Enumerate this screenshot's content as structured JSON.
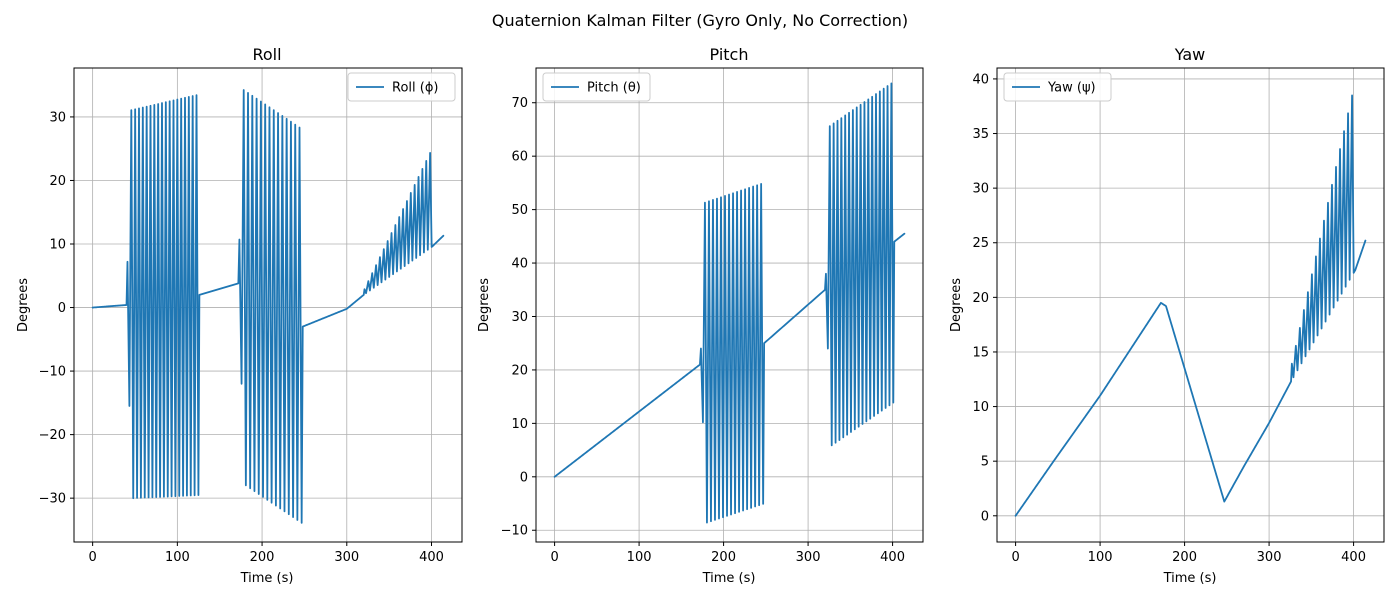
{
  "figure": {
    "suptitle": "Quaternion Kalman Filter (Gyro Only, No Correction)",
    "series_color": "#1f77b4"
  },
  "chart_data": [
    {
      "type": "line",
      "title": "Roll",
      "xlabel": "Time (s)",
      "ylabel": "Degrees",
      "xlim": [
        -22,
        436
      ],
      "ylim": [
        -36.9,
        37.7
      ],
      "xticks": [
        0,
        100,
        200,
        300,
        400
      ],
      "yticks": [
        -30,
        -20,
        -10,
        0,
        10,
        20,
        30
      ],
      "grid": true,
      "legend_position": "top-right",
      "series": [
        {
          "name": "Roll (ϕ)",
          "trend": [
            [
              0,
              0
            ],
            [
              40,
              0.4
            ],
            [
              126,
              2.0
            ],
            [
              172,
              3.8
            ],
            [
              248,
              -3.0
            ],
            [
              300,
              -0.2
            ],
            [
              320,
              2.0
            ],
            [
              400,
              9.5
            ],
            [
              414,
              11.3
            ]
          ],
          "bursts": [
            {
              "start": 40,
              "end": 126,
              "cycles": 19,
              "mode": "symmetric",
              "amp_start": 30.5,
              "amp_end": 31.5,
              "first_top": 7.2,
              "first_bottom": -15.5
            },
            {
              "start": 172,
              "end": 248,
              "cycles": 15,
              "mode": "symmetric",
              "amp_start": 31.0,
              "amp_end": 31.0,
              "first_top": 10.7,
              "first_bottom": -12.0
            },
            {
              "start": 320,
              "end": 402,
              "cycles": 18,
              "mode": "up",
              "amp_start": 0.8,
              "amp_end": 15.0
            }
          ]
        }
      ]
    },
    {
      "type": "line",
      "title": "Pitch",
      "xlabel": "Time (s)",
      "ylabel": "Degrees",
      "xlim": [
        -22,
        436
      ],
      "ylim": [
        -12.2,
        76.5
      ],
      "xticks": [
        0,
        100,
        200,
        300,
        400
      ],
      "yticks": [
        -10,
        0,
        10,
        20,
        30,
        40,
        50,
        60,
        70
      ],
      "grid": true,
      "legend_position": "top-left",
      "series": [
        {
          "name": "Pitch (θ)",
          "trend": [
            [
              0,
              0
            ],
            [
              172,
              21
            ],
            [
              248,
              25
            ],
            [
              320,
              35
            ],
            [
              402,
              44
            ],
            [
              414,
              45.5
            ]
          ],
          "bursts": [
            {
              "start": 172,
              "end": 248,
              "cycles": 16,
              "mode": "symmetric",
              "amp_start": 30.0,
              "amp_end": 30.0,
              "first_top": 24.0,
              "first_bottom": 10.2
            },
            {
              "start": 320,
              "end": 402,
              "cycles": 18,
              "mode": "symmetric",
              "amp_start": 30.0,
              "amp_end": 30.0,
              "first_top": 38.0,
              "first_bottom": 24.0
            }
          ]
        }
      ]
    },
    {
      "type": "line",
      "title": "Yaw",
      "xlabel": "Time (s)",
      "ylabel": "Degrees",
      "xlim": [
        -22,
        436
      ],
      "ylim": [
        -2.4,
        41.0
      ],
      "xticks": [
        0,
        100,
        200,
        300,
        400
      ],
      "yticks": [
        0,
        5,
        10,
        15,
        20,
        25,
        30,
        35,
        40
      ],
      "grid": true,
      "legend_position": "top-left",
      "series": [
        {
          "name": "Yaw (ψ)",
          "trend": [
            [
              0,
              0
            ],
            [
              45,
              5
            ],
            [
              100,
              11
            ],
            [
              172,
              19.5
            ],
            [
              178,
              19.2
            ],
            [
              247,
              1.3
            ],
            [
              270,
              4.5
            ],
            [
              300,
              8.5
            ],
            [
              326,
              12.3
            ],
            [
              402,
              22.5
            ],
            [
              414,
              25.2
            ]
          ],
          "bursts": [
            {
              "start": 326,
              "end": 402,
              "cycles": 16,
              "mode": "up",
              "amp_start": 1.5,
              "amp_end": 16.5
            }
          ]
        }
      ]
    }
  ]
}
